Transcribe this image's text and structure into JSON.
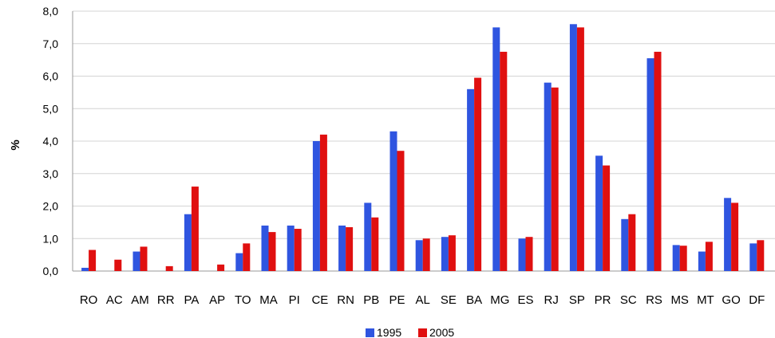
{
  "chart_data": {
    "type": "bar",
    "ylabel": "%",
    "ylim": [
      0,
      8
    ],
    "y_ticks": [
      "0,0",
      "1,0",
      "2,0",
      "3,0",
      "4,0",
      "5,0",
      "6,0",
      "7,0",
      "8,0"
    ],
    "grid": true,
    "legend_position": "bottom",
    "categories": [
      "RO",
      "AC",
      "AM",
      "RR",
      "PA",
      "AP",
      "TO",
      "MA",
      "PI",
      "CE",
      "RN",
      "PB",
      "PE",
      "AL",
      "SE",
      "BA",
      "MG",
      "ES",
      "RJ",
      "SP",
      "PR",
      "SC",
      "RS",
      "MS",
      "MT",
      "GO",
      "DF"
    ],
    "series": [
      {
        "name": "1995",
        "color": "#2f55e0",
        "values": [
          0.1,
          0.0,
          0.6,
          0.0,
          1.75,
          0.0,
          0.55,
          1.4,
          1.4,
          4.0,
          1.4,
          2.1,
          4.3,
          0.95,
          1.05,
          5.6,
          7.5,
          1.0,
          5.8,
          7.6,
          3.55,
          1.6,
          6.55,
          0.8,
          0.6,
          2.25,
          0.85
        ]
      },
      {
        "name": "2005",
        "color": "#e01010",
        "values": [
          0.65,
          0.35,
          0.75,
          0.15,
          2.6,
          0.2,
          0.85,
          1.2,
          1.3,
          4.2,
          1.35,
          1.65,
          3.7,
          1.0,
          1.1,
          5.95,
          6.75,
          1.05,
          5.65,
          7.5,
          3.25,
          1.75,
          6.75,
          0.78,
          0.9,
          2.1,
          0.95
        ]
      }
    ]
  }
}
